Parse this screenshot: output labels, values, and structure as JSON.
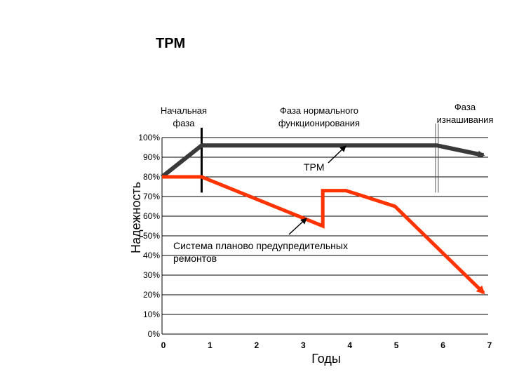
{
  "title": "TPM",
  "phases": {
    "initial": [
      "Начальная",
      "фаза"
    ],
    "normal": [
      "Фаза нормального",
      "функционирования"
    ],
    "wear": [
      "Фаза",
      "изнашивания"
    ]
  },
  "annotations": {
    "tpm": "TPM",
    "ppr": [
      "Система планово предупредительных",
      "ремонтов"
    ]
  },
  "colors": {
    "tpm_line": "#3a3a3a",
    "ppr_line": "#ff3300",
    "grid": "#000000"
  },
  "chart_data": {
    "type": "line",
    "xlabel": "Годы",
    "ylabel": "Надежность",
    "xlim": [
      0,
      7
    ],
    "ylim": [
      0,
      100
    ],
    "x_ticks": [
      "0",
      "1",
      "2",
      "3",
      "4",
      "5",
      "6",
      "7"
    ],
    "y_ticks": [
      "0%",
      "10%",
      "20%",
      "30%",
      "40%",
      "50%",
      "60%",
      "70%",
      "80%",
      "90%",
      "100%"
    ],
    "grid": "horizontal",
    "phase_boundaries": [
      0.85,
      5.9
    ],
    "series": [
      {
        "label": "TPM",
        "x": [
          0,
          0.85,
          5.9,
          6.9
        ],
        "y": [
          80,
          96,
          96,
          91
        ]
      },
      {
        "label": "Система планово предупредительных ремонтов",
        "x": [
          0,
          0.85,
          3.45,
          3.45,
          3.95,
          5.0,
          6.9
        ],
        "y": [
          80,
          80,
          55,
          73,
          73,
          65,
          21
        ]
      }
    ]
  }
}
